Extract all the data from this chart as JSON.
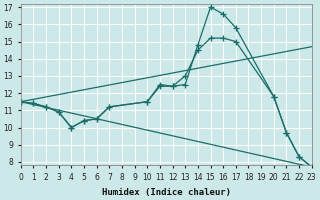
{
  "xlabel": "Humidex (Indice chaleur)",
  "bg_color": "#cce8e8",
  "grid_color": "#b8d8d8",
  "line_color": "#1a6e6a",
  "xlim": [
    0,
    23
  ],
  "ylim": [
    7.8,
    17.2
  ],
  "xticks": [
    0,
    1,
    2,
    3,
    4,
    5,
    6,
    7,
    8,
    9,
    10,
    11,
    12,
    13,
    14,
    15,
    16,
    17,
    18,
    19,
    20,
    21,
    22,
    23
  ],
  "yticks": [
    8,
    9,
    10,
    11,
    12,
    13,
    14,
    15,
    16,
    17
  ],
  "lines": [
    {
      "x": [
        0,
        1,
        2,
        3,
        4,
        5,
        6,
        7,
        10,
        11,
        12,
        13,
        14,
        15,
        16,
        17,
        20,
        21,
        22,
        23
      ],
      "y": [
        11.5,
        11.4,
        11.2,
        10.9,
        10.0,
        10.4,
        10.5,
        11.2,
        11.5,
        12.4,
        12.4,
        13.0,
        14.5,
        15.2,
        15.2,
        15.0,
        11.8,
        9.7,
        8.3,
        7.7
      ],
      "has_markers": true
    },
    {
      "x": [
        0,
        1,
        2,
        3,
        4,
        5,
        6,
        7,
        10,
        11,
        12,
        13,
        14,
        15,
        16,
        17,
        20,
        21,
        22,
        23
      ],
      "y": [
        11.5,
        11.4,
        11.2,
        10.9,
        10.0,
        10.4,
        10.5,
        11.2,
        11.5,
        12.5,
        12.4,
        12.5,
        14.8,
        17.0,
        16.6,
        15.8,
        11.8,
        9.7,
        8.3,
        7.7
      ],
      "has_markers": true
    },
    {
      "x": [
        0,
        23
      ],
      "y": [
        11.5,
        14.7
      ],
      "has_markers": false
    },
    {
      "x": [
        0,
        23
      ],
      "y": [
        11.5,
        7.7
      ],
      "has_markers": false
    }
  ]
}
